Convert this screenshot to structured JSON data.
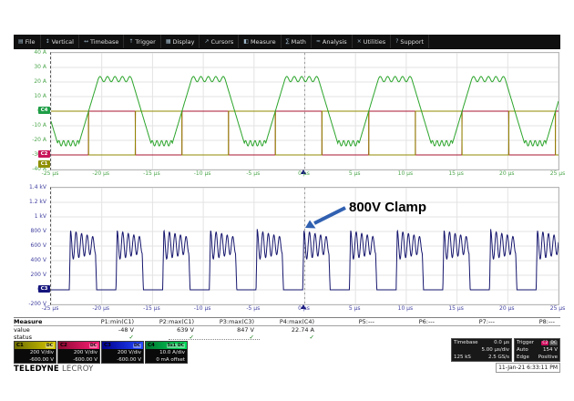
{
  "menu": {
    "items": [
      {
        "label": "File",
        "icon": "file-icon",
        "glyph": "▤"
      },
      {
        "label": "Vertical",
        "icon": "vertical-icon",
        "glyph": "↕"
      },
      {
        "label": "Timebase",
        "icon": "timebase-icon",
        "glyph": "↔"
      },
      {
        "label": "Trigger",
        "icon": "trigger-icon",
        "glyph": "↑"
      },
      {
        "label": "Display",
        "icon": "display-icon",
        "glyph": "▦"
      },
      {
        "label": "Cursors",
        "icon": "cursors-icon",
        "glyph": "↗"
      },
      {
        "label": "Measure",
        "icon": "measure-icon",
        "glyph": "◧"
      },
      {
        "label": "Math",
        "icon": "math-icon",
        "glyph": "∑"
      },
      {
        "label": "Analysis",
        "icon": "analysis-icon",
        "glyph": "≈"
      },
      {
        "label": "Utilities",
        "icon": "utilities-icon",
        "glyph": "×"
      },
      {
        "label": "Support",
        "icon": "support-icon",
        "glyph": "?"
      }
    ]
  },
  "top_chart": {
    "tick_color": "#4ca64c",
    "x_range": [
      -25,
      25
    ],
    "y_ticks": [
      "40 A",
      "30 A",
      "20 A",
      "10 A",
      "0 A",
      "-10 A",
      "-20 A",
      "-30 A",
      "-40 A"
    ],
    "x_ticks": [
      "-25 µs",
      "-20 µs",
      "-15 µs",
      "-10 µs",
      "-5 µs",
      "0 µs",
      "5 µs",
      "10 µs",
      "15 µs",
      "20 µs",
      "25 µs"
    ],
    "markers": [
      {
        "label": "C4",
        "color": "#1e9e46",
        "value": 0
      },
      {
        "label": "C2",
        "color": "#c8145a",
        "value": -30
      },
      {
        "label": "C1",
        "color": "#8f8f00",
        "value": -37
      }
    ],
    "series": [
      {
        "id": "C2",
        "color": "#aa1432",
        "type": "square",
        "period_us": 9.2,
        "phase_us": -21.3,
        "duty": 0.5,
        "high": 0,
        "low": -30
      },
      {
        "id": "C1",
        "color": "#918a00",
        "type": "square",
        "period_us": 9.2,
        "phase_us": -25.9,
        "duty": 0.5,
        "high": 0,
        "low": -30
      },
      {
        "id": "C4",
        "color": "#2aa42a",
        "type": "trapezoid",
        "period_us": 9.2,
        "phase_us": -22.25,
        "low": -22,
        "high": 22,
        "rise_us": 1.9,
        "top_us": 3.3,
        "fall_us": 1.9,
        "ripple": 1.8,
        "ripple_cycles": 4.5
      }
    ]
  },
  "bottom_chart": {
    "tick_color": "#4141a0",
    "x_range": [
      -25,
      25
    ],
    "y_ticks": [
      "1.4 kV",
      "1.2 kV",
      "1 kV",
      "800 V",
      "600 V",
      "400 V",
      "200 V",
      "0 V",
      "-200 V"
    ],
    "x_ticks": [
      "-25 µs",
      "-20 µs",
      "-15 µs",
      "-10 µs",
      "-5 µs",
      "0 µs",
      "5 µs",
      "10 µs",
      "15 µs",
      "20 µs",
      "25 µs"
    ],
    "markers": [
      {
        "label": "C3",
        "color": "#16167d",
        "value": 0
      }
    ],
    "series": [
      {
        "id": "C3",
        "color": "#16166e",
        "type": "burst",
        "period_us": 4.6,
        "phase_us": -23.2,
        "base": 0,
        "peak": 845,
        "mid": 612,
        "amp": 200,
        "amp_decay": 0.45,
        "cycles": 4.5,
        "burst_us": 2.7,
        "edge_us": 0.12
      }
    ]
  },
  "annotation": {
    "text": "800V Clamp",
    "arrow_color": "#3060b0"
  },
  "measure": {
    "title": "Measure",
    "row_labels": [
      "value",
      "status"
    ],
    "params": [
      {
        "name": "P1:min(C1)",
        "value": "-48 V",
        "status": "✓"
      },
      {
        "name": "P2:max(C1)",
        "value": "639 V",
        "status": "✓"
      },
      {
        "name": "P3:max(C3)",
        "value": "847 V",
        "status": "✓"
      },
      {
        "name": "P4:max(C4)",
        "value": "22.74 A",
        "status": "✓"
      },
      {
        "name": "P5:---",
        "value": "",
        "status": ""
      },
      {
        "name": "P6:---",
        "value": "",
        "status": ""
      },
      {
        "name": "P7:---",
        "value": "",
        "status": ""
      },
      {
        "name": "P8:---",
        "value": "",
        "status": ""
      }
    ]
  },
  "descriptors": [
    {
      "id": "C1",
      "c1": "#6e6e00",
      "c2": "#d8ca00",
      "badges": [
        "DC"
      ],
      "line1": "200 V/div",
      "line2": "-600.00 V"
    },
    {
      "id": "C2",
      "c1": "#8c0a32",
      "c2": "#ff1e78",
      "badges": [
        "DC"
      ],
      "line1": "200 V/div",
      "line2": "-600.00 V"
    },
    {
      "id": "C3",
      "c1": "#00008c",
      "c2": "#2346ff",
      "badges": [
        "DC"
      ],
      "line1": "200 V/div",
      "line2": "-600.00 V"
    },
    {
      "id": "C4",
      "c1": "#007532",
      "c2": "#00dc5a",
      "badges": [
        "5x1",
        "DC"
      ],
      "line1": "10.0 A/div",
      "line2": "0 mA offset"
    }
  ],
  "timebase": {
    "title": "Timebase",
    "offset": "0.0 µs",
    "scale": "5.00 µs/div",
    "samples": "125 kS",
    "rate": "2.5 GS/s"
  },
  "trigger": {
    "title": "Trigger",
    "badges": [
      {
        "label": "C2",
        "color": "#d01060"
      },
      {
        "label": "DC",
        "color": "#5a5a5a"
      }
    ],
    "mode": "Auto",
    "level": "154 V",
    "type": "Edge",
    "slope": "Positive"
  },
  "footer": {
    "brand_bold": "TELEDYNE",
    "brand_light": "LECROY",
    "datetime": "11-Jan-21 6:33:11 PM"
  }
}
